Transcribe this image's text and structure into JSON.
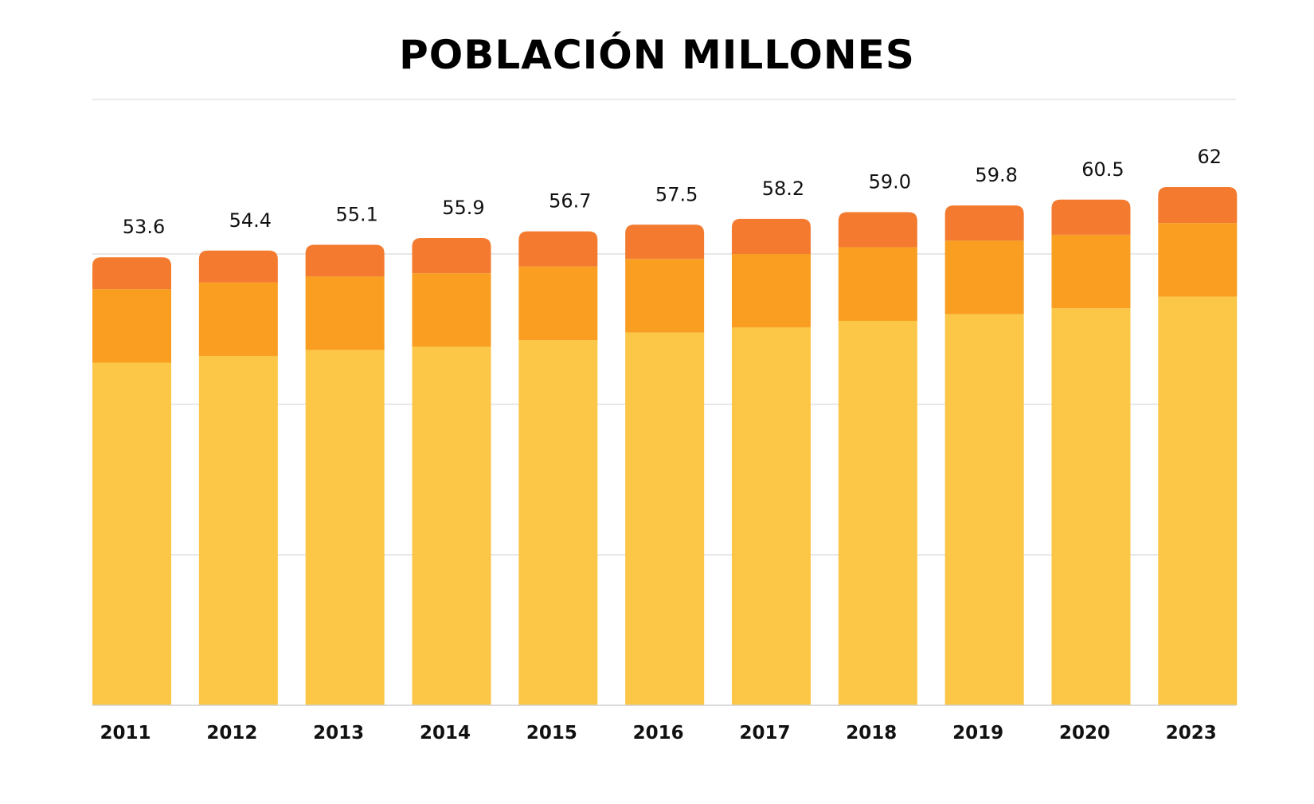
{
  "chart_data": {
    "type": "bar",
    "stacked": true,
    "title": "POBLACIÓN MILLONES",
    "xlabel": "",
    "ylabel": "",
    "categories": [
      "2011",
      "2012",
      "2013",
      "2014",
      "2015",
      "2016",
      "2017",
      "2018",
      "2019",
      "2020",
      "2023"
    ],
    "value_labels": [
      "53.6",
      "54.4",
      "55.1",
      "55.9",
      "56.7",
      "57.5",
      "58.2",
      "59.0",
      "59.8",
      "60.5",
      "62"
    ],
    "totals": [
      53.6,
      54.4,
      55.1,
      55.9,
      56.7,
      57.5,
      58.2,
      59.0,
      59.8,
      60.5,
      62
    ],
    "series": [
      {
        "values": [
          41.0,
          41.8,
          42.5,
          42.9,
          43.7,
          44.6,
          45.2,
          46.0,
          46.8,
          47.5,
          48.9
        ],
        "color": "#FCC646"
      },
      {
        "values": [
          8.8,
          8.8,
          8.8,
          8.8,
          8.8,
          8.8,
          8.8,
          8.8,
          8.8,
          8.8,
          8.8
        ],
        "color": "#F99E21"
      },
      {
        "values": [
          3.8,
          3.8,
          3.8,
          4.2,
          4.2,
          4.1,
          4.2,
          4.2,
          4.2,
          4.2,
          4.3
        ],
        "color": "#F37A2E"
      }
    ],
    "ylim": [
      0,
      66
    ],
    "grid": true,
    "gridlines": [
      0,
      18,
      36,
      54
    ],
    "legend": "none"
  }
}
